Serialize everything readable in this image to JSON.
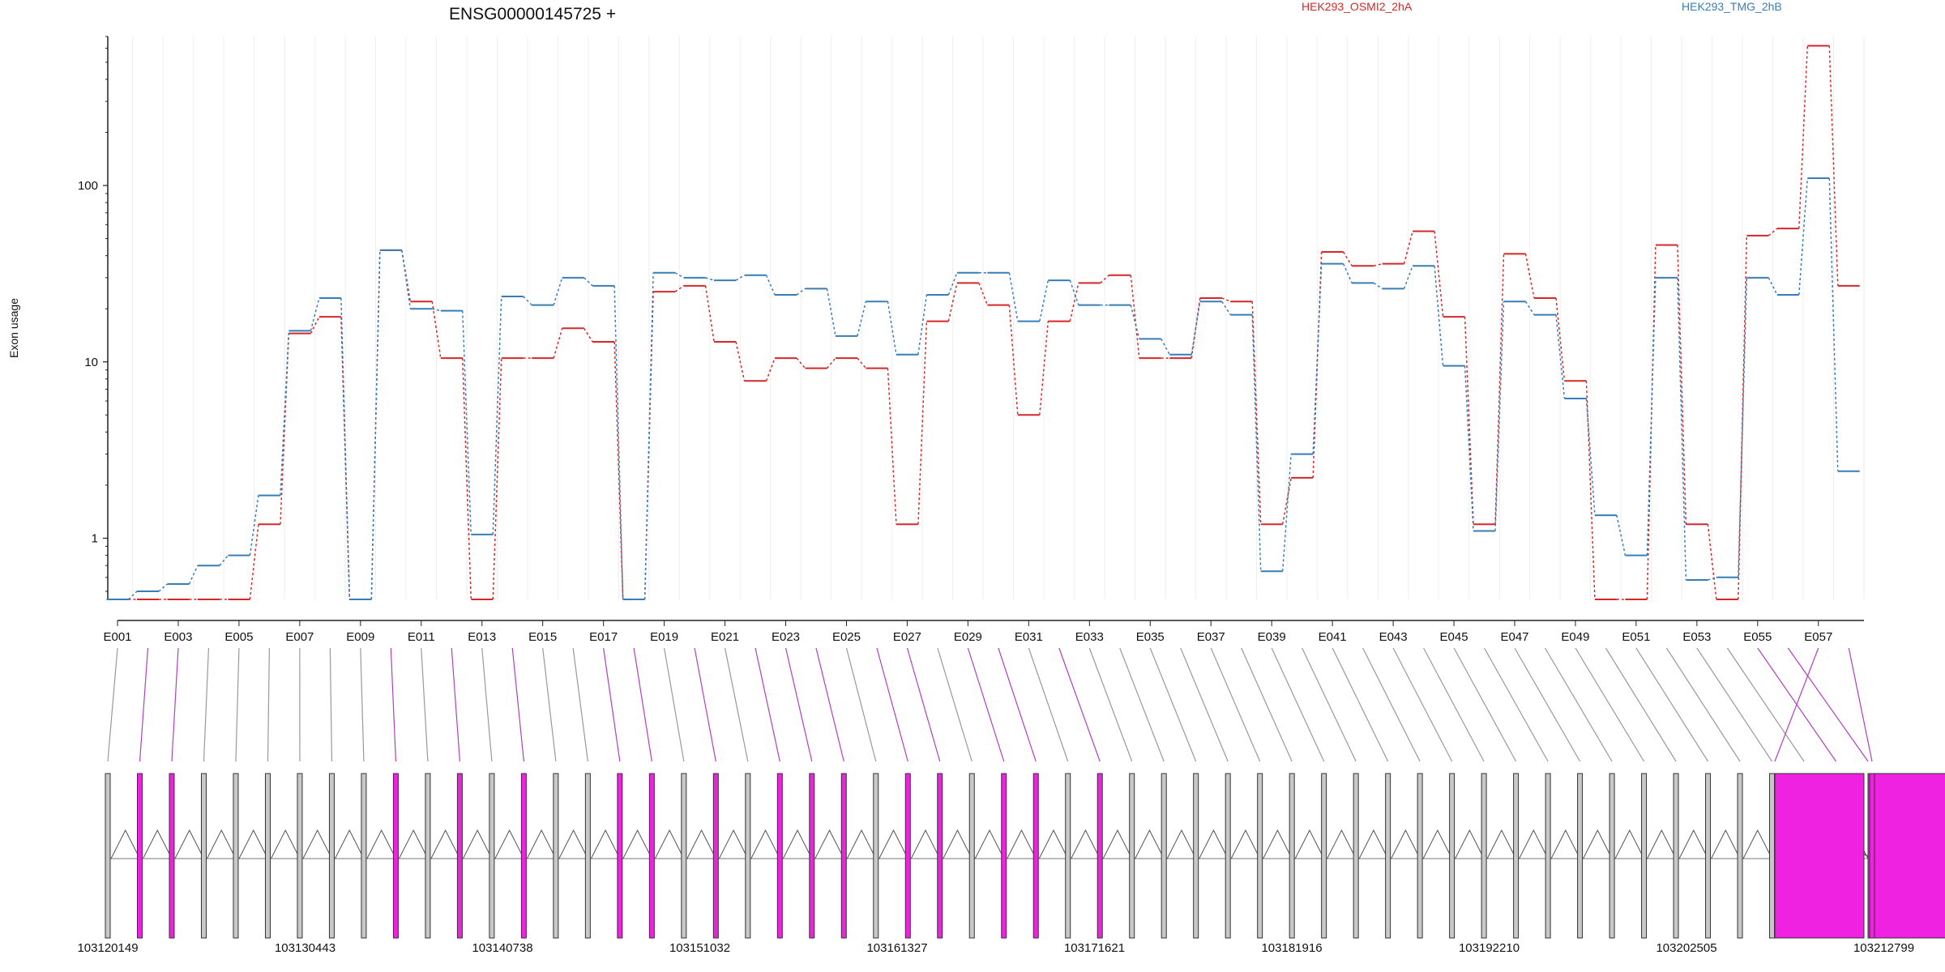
{
  "chart_data": {
    "type": "line",
    "title": "ENSG00000145725 +",
    "ylabel": "Exon usage",
    "xlabel": "",
    "yscale": "log",
    "ylim": [
      0.45,
      700
    ],
    "yticks": [
      1,
      10,
      100
    ],
    "ytick_labels": [
      "1",
      "10",
      "100"
    ],
    "grid": "vertical, light",
    "legend_position": "top-right",
    "colors": {
      "series_a": "#d62728",
      "series_b": "#377eb8",
      "model_link_flagged": "#b040c0",
      "exon_flagged": "#ee22e0",
      "exon_normal": "#c8c8c8"
    },
    "categories": [
      "E001",
      "E002",
      "E003",
      "E004",
      "E005",
      "E006",
      "E007",
      "E008",
      "E009",
      "E010",
      "E011",
      "E012",
      "E013",
      "E014",
      "E015",
      "E016",
      "E017",
      "E018",
      "E019",
      "E020",
      "E021",
      "E022",
      "E023",
      "E024",
      "E025",
      "E026",
      "E027",
      "E028",
      "E029",
      "E030",
      "E031",
      "E032",
      "E033",
      "E034",
      "E035",
      "E036",
      "E037",
      "E038",
      "E039",
      "E040",
      "E041",
      "E042",
      "E043",
      "E044",
      "E045",
      "E046",
      "E047",
      "E048",
      "E049",
      "E050",
      "E051",
      "E052",
      "E053",
      "E054",
      "E055",
      "E056",
      "E057",
      "E058"
    ],
    "tick_labels": [
      "E001",
      "E003",
      "E005",
      "E007",
      "E009",
      "E011",
      "E013",
      "E015",
      "E017",
      "E019",
      "E021",
      "E023",
      "E025",
      "E027",
      "E029",
      "E031",
      "E033",
      "E035",
      "E037",
      "E039",
      "E041",
      "E043",
      "E045",
      "E047",
      "E049",
      "E051",
      "E053",
      "E055",
      "E057"
    ],
    "series": [
      {
        "name": "HEK293_OSMI2_2hA",
        "values": [
          0.45,
          0.45,
          0.45,
          0.45,
          0.45,
          1.2,
          14.5,
          18,
          0.45,
          43,
          22,
          10.5,
          0.45,
          10.5,
          10.5,
          15.5,
          13,
          0.45,
          25,
          27,
          13,
          7.8,
          10.5,
          9.2,
          10.5,
          9.2,
          1.2,
          17,
          28,
          21,
          5,
          17,
          28,
          31,
          10.5,
          10.5,
          23,
          22,
          1.2,
          2.2,
          42,
          35,
          36,
          55,
          18,
          1.2,
          41,
          23,
          7.8,
          0.45,
          0.45,
          46,
          1.2,
          0.45,
          52,
          57,
          620,
          27
        ]
      },
      {
        "name": "HEK293_TMG_2hB",
        "values": [
          0.45,
          0.5,
          0.55,
          0.7,
          0.8,
          1.75,
          15,
          23,
          0.45,
          43,
          20,
          19.5,
          1.05,
          23.5,
          21,
          30,
          27,
          0.45,
          32,
          30,
          29,
          31,
          24,
          26,
          14,
          22,
          11,
          24,
          32,
          32,
          17,
          29,
          21,
          21,
          13.5,
          11,
          22,
          18.5,
          0.65,
          3,
          36,
          28,
          26,
          35,
          9.5,
          1.1,
          22,
          18.5,
          6.2,
          1.35,
          0.8,
          30,
          0.58,
          0.6,
          30,
          24,
          110,
          2.4
        ]
      }
    ],
    "gene_model": {
      "coordinate_labels": [
        "103120149",
        "103130443",
        "103140738",
        "103151032",
        "103161327",
        "103171621",
        "103181916",
        "103192210",
        "103202505",
        "103212799"
      ],
      "flagged_exons": [
        "E002",
        "E003",
        "E010",
        "E012",
        "E014",
        "E017",
        "E018",
        "E020",
        "E022",
        "E023",
        "E024",
        "E026",
        "E027",
        "E029",
        "E030",
        "E032",
        "E055",
        "E056",
        "E057",
        "E058"
      ]
    }
  }
}
